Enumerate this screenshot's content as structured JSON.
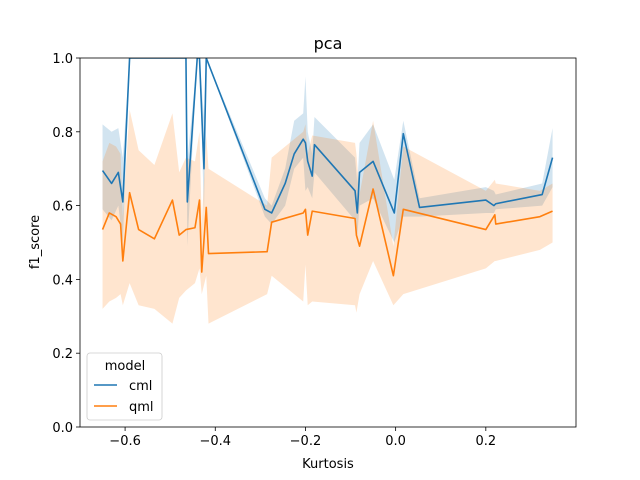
{
  "chart_data": {
    "type": "line",
    "title": "pca",
    "xlabel": "Kurtosis",
    "ylabel": "f1_score",
    "xlim": [
      -0.7,
      0.4
    ],
    "ylim": [
      0.0,
      1.0
    ],
    "x_ticks": [
      -0.6,
      -0.4,
      -0.2,
      0.0,
      0.2
    ],
    "x_tick_labels": [
      "−0.6",
      "−0.4",
      "−0.2",
      "0.0",
      "0.2"
    ],
    "y_ticks": [
      0.0,
      0.2,
      0.4,
      0.6,
      0.8,
      1.0
    ],
    "y_tick_labels": [
      "0.0",
      "0.2",
      "0.4",
      "0.6",
      "0.8",
      "1.0"
    ],
    "grid": false,
    "legend": {
      "title": "model",
      "placement": "lower-left"
    },
    "series": [
      {
        "name": "cml",
        "color": "#1f77b4",
        "band_color": "#1f77b4",
        "x": [
          -0.65,
          -0.63,
          -0.615,
          -0.605,
          -0.59,
          -0.465,
          -0.462,
          -0.44,
          -0.435,
          -0.425,
          -0.42,
          -0.29,
          -0.275,
          -0.245,
          -0.225,
          -0.205,
          -0.2,
          -0.195,
          -0.185,
          -0.18,
          -0.09,
          -0.085,
          -0.08,
          -0.05,
          -0.003,
          0.017,
          0.053,
          0.2,
          0.218,
          0.222,
          0.325,
          0.348
        ],
        "y": [
          0.695,
          0.66,
          0.69,
          0.61,
          1.0,
          1.0,
          0.61,
          1.0,
          1.0,
          0.7,
          1.0,
          0.59,
          0.58,
          0.66,
          0.74,
          0.78,
          0.77,
          0.72,
          0.68,
          0.765,
          0.64,
          0.58,
          0.69,
          0.72,
          0.58,
          0.795,
          0.595,
          0.615,
          0.6,
          0.605,
          0.63,
          0.73
        ],
        "lower": [
          0.59,
          0.56,
          0.6,
          0.5,
          1.0,
          1.0,
          0.49,
          1.0,
          1.0,
          0.58,
          1.0,
          0.57,
          0.55,
          0.6,
          0.7,
          0.73,
          0.64,
          0.65,
          0.62,
          0.69,
          0.56,
          0.52,
          0.6,
          0.62,
          0.5,
          0.57,
          0.57,
          0.58,
          0.58,
          0.59,
          0.6,
          0.65
        ],
        "upper": [
          0.82,
          0.8,
          0.81,
          0.73,
          1.0,
          1.0,
          0.72,
          1.0,
          1.0,
          0.84,
          1.0,
          0.62,
          0.6,
          0.7,
          0.83,
          0.85,
          0.95,
          0.8,
          0.74,
          0.84,
          0.73,
          0.66,
          0.77,
          0.82,
          0.67,
          0.83,
          0.62,
          0.65,
          0.64,
          0.63,
          0.66,
          0.81
        ]
      },
      {
        "name": "qml",
        "color": "#ff7f0e",
        "band_color": "#ff7f0e",
        "x": [
          -0.65,
          -0.635,
          -0.62,
          -0.61,
          -0.605,
          -0.59,
          -0.57,
          -0.535,
          -0.495,
          -0.48,
          -0.465,
          -0.445,
          -0.435,
          -0.43,
          -0.42,
          -0.415,
          -0.285,
          -0.275,
          -0.205,
          -0.2,
          -0.195,
          -0.185,
          -0.09,
          -0.087,
          -0.08,
          -0.05,
          -0.005,
          0.017,
          0.2,
          0.22,
          0.222,
          0.32,
          0.348
        ],
        "y": [
          0.535,
          0.58,
          0.57,
          0.55,
          0.45,
          0.635,
          0.535,
          0.51,
          0.615,
          0.52,
          0.535,
          0.54,
          0.615,
          0.42,
          0.595,
          0.47,
          0.475,
          0.555,
          0.58,
          0.59,
          0.52,
          0.585,
          0.565,
          0.52,
          0.49,
          0.645,
          0.41,
          0.59,
          0.535,
          0.575,
          0.55,
          0.57,
          0.585
        ],
        "lower": [
          0.32,
          0.34,
          0.35,
          0.36,
          0.33,
          0.39,
          0.33,
          0.32,
          0.28,
          0.35,
          0.37,
          0.39,
          0.43,
          0.36,
          0.41,
          0.28,
          0.36,
          0.41,
          0.34,
          0.44,
          0.33,
          0.34,
          0.33,
          0.31,
          0.36,
          0.45,
          0.33,
          0.36,
          0.43,
          0.45,
          0.45,
          0.48,
          0.5
        ],
        "upper": [
          0.72,
          0.77,
          0.76,
          0.74,
          0.57,
          0.86,
          0.75,
          0.71,
          0.85,
          0.69,
          0.73,
          0.72,
          0.8,
          0.55,
          0.79,
          0.7,
          0.6,
          0.73,
          0.8,
          0.82,
          0.74,
          0.79,
          0.77,
          0.74,
          0.63,
          0.83,
          0.49,
          0.76,
          0.64,
          0.67,
          0.66,
          0.64,
          0.66
        ]
      }
    ]
  }
}
